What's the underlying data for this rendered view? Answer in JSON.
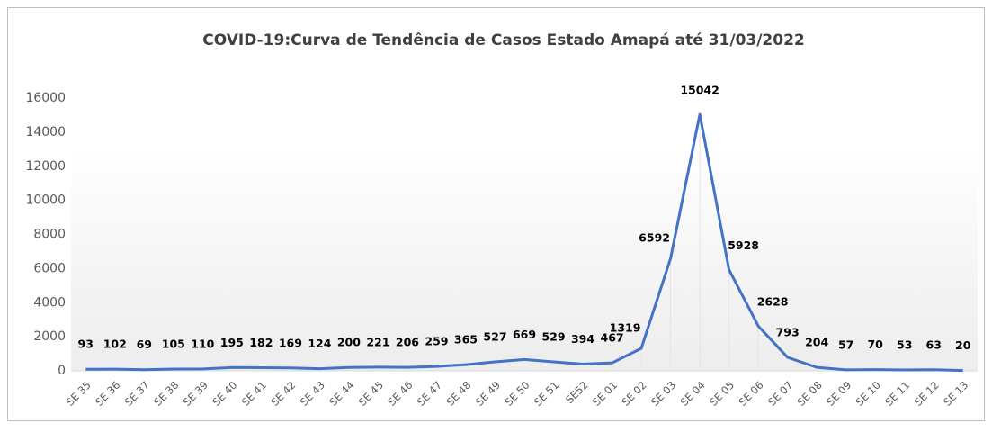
{
  "chart_data": {
    "type": "line",
    "title": "COVID-19:Curva de Tendência de Casos Estado Amapá até 31/03/2022",
    "categories": [
      "SE 35",
      "SE 36",
      "SE 37",
      "SE 38",
      "SE 39",
      "SE 40",
      "SE 41",
      "SE 42",
      "SE 43",
      "SE 44",
      "SE 45",
      "SE 46",
      "SE 47",
      "SE 48",
      "SE 49",
      "SE 50",
      "SE 51",
      "SE52",
      "SE 01",
      "SE 02",
      "SE 03",
      "SE 04",
      "SE 05",
      "SE 06",
      "SE 07",
      "SE 08",
      "SE 09",
      "SE 10",
      "SE 11",
      "SE 12",
      "SE 13"
    ],
    "series": [
      {
        "name": "Casos",
        "color": "#4472c4",
        "values": [
          93,
          102,
          69,
          105,
          110,
          195,
          182,
          169,
          124,
          200,
          221,
          206,
          259,
          365,
          527,
          669,
          529,
          394,
          467,
          1319,
          6592,
          15042,
          5928,
          2628,
          793,
          204,
          57,
          70,
          53,
          63,
          20
        ]
      }
    ],
    "ylim": [
      0,
      16000
    ],
    "yticks": [
      0,
      2000,
      4000,
      6000,
      8000,
      10000,
      12000,
      14000,
      16000
    ]
  }
}
